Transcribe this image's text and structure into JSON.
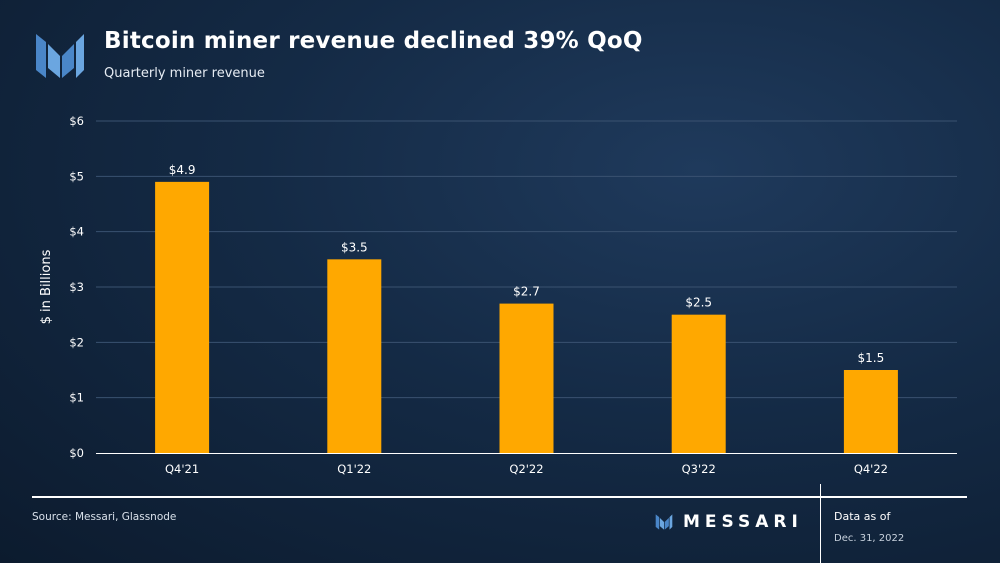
{
  "header": {
    "title": "Bitcoin miner revenue declined 39% QoQ",
    "subtitle": "Quarterly miner revenue"
  },
  "footer": {
    "source": "Source: Messari, Glassnode",
    "brand": "MESSARI",
    "as_of_label": "Data as of",
    "as_of_date": "Dec. 31, 2022"
  },
  "colors": {
    "bar": "#FFA800",
    "grid": "#3a5270",
    "axis_text": "#ffffff"
  },
  "chart_data": {
    "type": "bar",
    "title": "Bitcoin miner revenue declined 39% QoQ",
    "subtitle": "Quarterly miner revenue",
    "xlabel": "",
    "ylabel": "$ in Billions",
    "categories": [
      "Q4'21",
      "Q1'22",
      "Q2'22",
      "Q3'22",
      "Q4'22"
    ],
    "values": [
      4.9,
      3.5,
      2.7,
      2.5,
      1.5
    ],
    "data_labels": [
      "$4.9",
      "$3.5",
      "$2.7",
      "$2.5",
      "$1.5"
    ],
    "ylim": [
      0,
      6
    ],
    "yticks": [
      0,
      1,
      2,
      3,
      4,
      5,
      6
    ],
    "ytick_labels": [
      "$0",
      "$1",
      "$2",
      "$3",
      "$4",
      "$5",
      "$6"
    ],
    "grid": true,
    "legend": "none"
  }
}
